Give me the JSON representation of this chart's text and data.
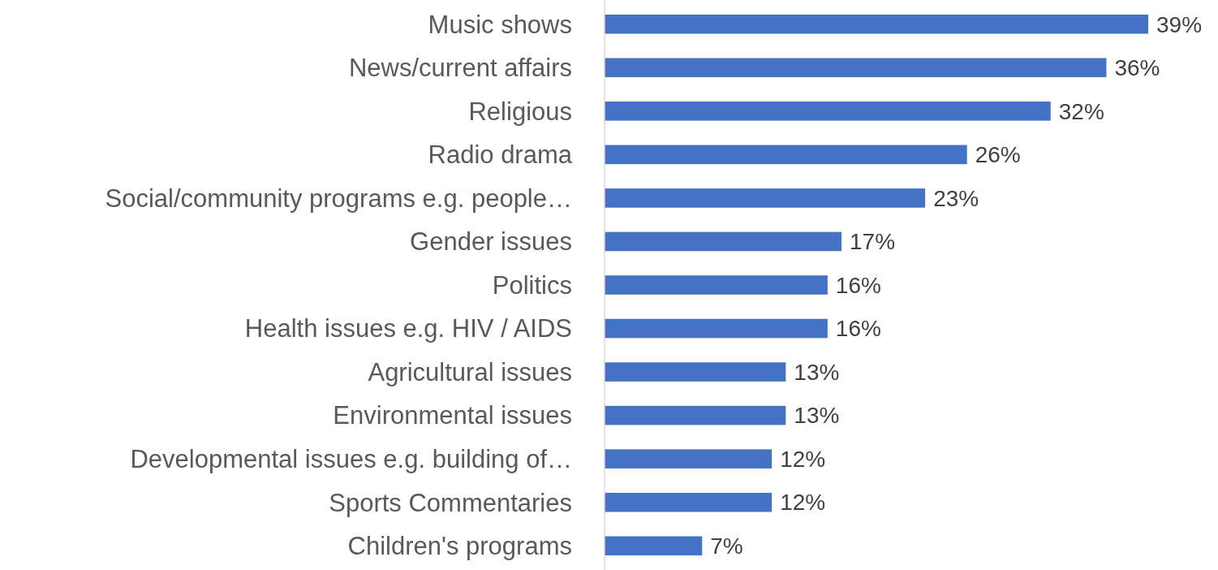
{
  "chart_data": {
    "type": "bar",
    "orientation": "horizontal",
    "categories": [
      "Music shows",
      "News/current affairs",
      "Religious",
      "Radio drama",
      "Social/community programs e.g. people…",
      "Gender issues",
      "Politics",
      "Health issues e.g. HIV / AIDS",
      "Agricultural issues",
      "Environmental issues",
      "Developmental issues e.g. building of…",
      "Sports Commentaries",
      "Children's programs"
    ],
    "values": [
      39,
      36,
      32,
      26,
      23,
      17,
      16,
      16,
      13,
      13,
      12,
      12,
      7
    ],
    "value_labels": [
      "39%",
      "36%",
      "32%",
      "26%",
      "23%",
      "17%",
      "16%",
      "16%",
      "13%",
      "13%",
      "12%",
      "12%",
      "7%"
    ],
    "color": "#4472c4",
    "grid": false,
    "tick_labels": "y"
  }
}
